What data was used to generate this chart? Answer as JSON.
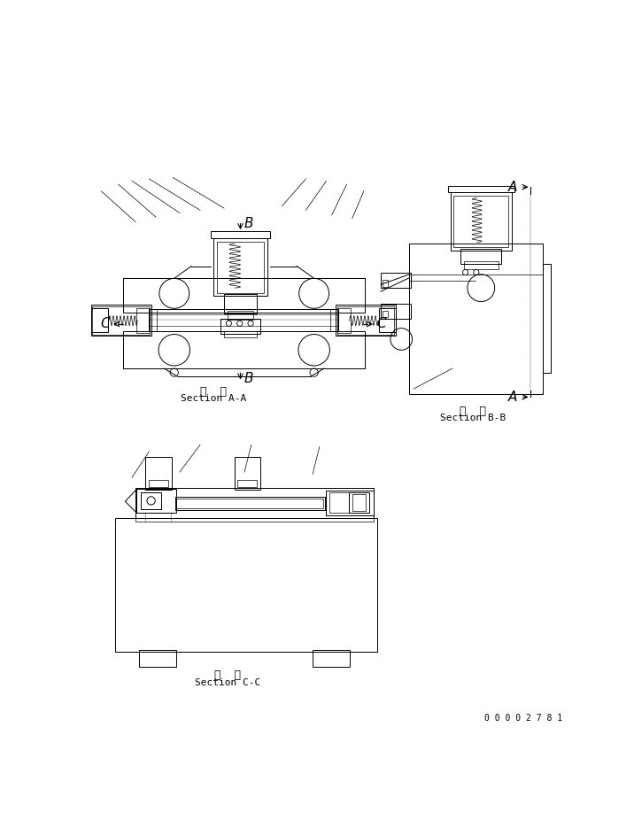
{
  "bg_color": "#ffffff",
  "line_color": "#000000",
  "fig_width": 7.16,
  "fig_height": 9.26,
  "dpi": 100,
  "sec_aa_l1": "断  面",
  "sec_aa_l2": "Section A-A",
  "sec_bb_l1": "断  面",
  "sec_bb_l2": "Section B-B",
  "sec_cc_l1": "断  面",
  "sec_cc_l2": "Section C-C",
  "doc_number": "0 0 0 0 2 7 8 1"
}
